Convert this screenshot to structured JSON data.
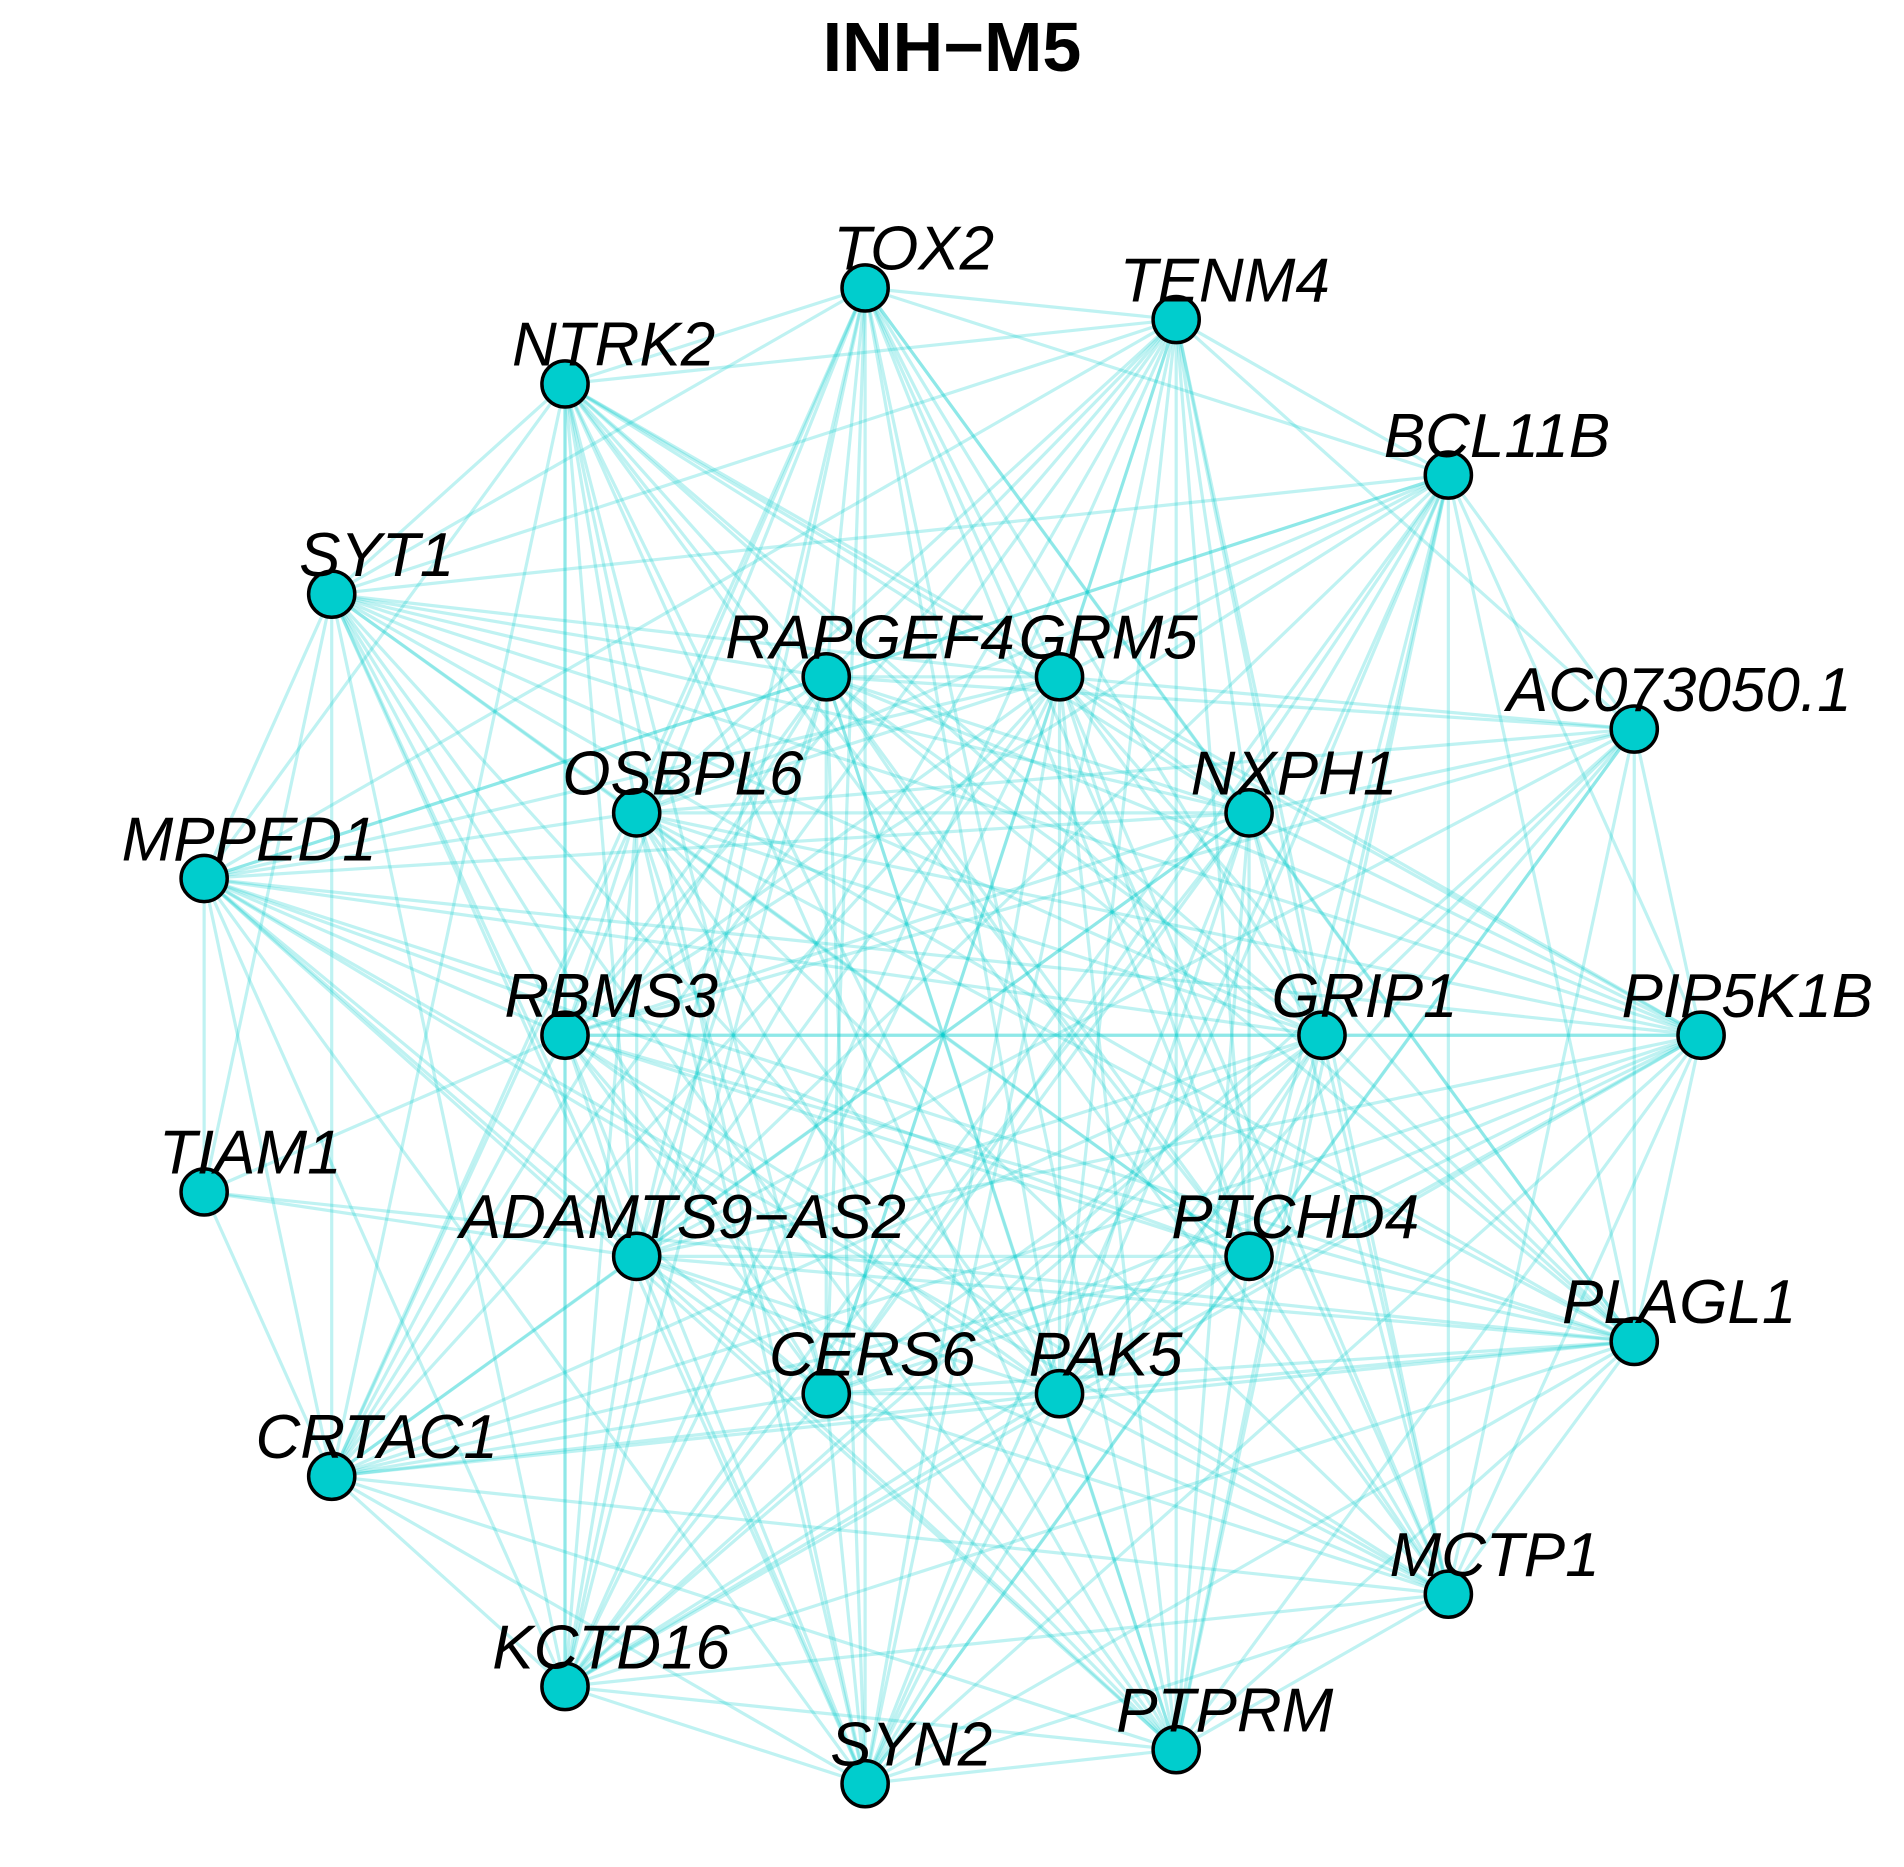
{
  "title": "INH−M5",
  "node_color": "#00cdcd",
  "edge_color": "#00cdcd",
  "nodes": [
    {
      "id": "TOX2",
      "label": "TOX2"
    },
    {
      "id": "TENM4",
      "label": "TENM4"
    },
    {
      "id": "NTRK2",
      "label": "NTRK2"
    },
    {
      "id": "BCL11B",
      "label": "BCL11B"
    },
    {
      "id": "SYT1",
      "label": "SYT1"
    },
    {
      "id": "RAPGEF4",
      "label": "RAPGEF4"
    },
    {
      "id": "GRM5",
      "label": "GRM5"
    },
    {
      "id": "AC073050.1",
      "label": "AC073050.1"
    },
    {
      "id": "OSBPL6",
      "label": "OSBPL6"
    },
    {
      "id": "NXPH1",
      "label": "NXPH1"
    },
    {
      "id": "MPPED1",
      "label": "MPPED1"
    },
    {
      "id": "RBMS3",
      "label": "RBMS3"
    },
    {
      "id": "GRIP1",
      "label": "GRIP1"
    },
    {
      "id": "PIP5K1B",
      "label": "PIP5K1B"
    },
    {
      "id": "TIAM1",
      "label": "TIAM1"
    },
    {
      "id": "ADAMTS9-AS2",
      "label": "ADAMTS9−AS2"
    },
    {
      "id": "PTCHD4",
      "label": "PTCHD4"
    },
    {
      "id": "PLAGL1",
      "label": "PLAGL1"
    },
    {
      "id": "CERS6",
      "label": "CERS6"
    },
    {
      "id": "PAK5",
      "label": "PAK5"
    },
    {
      "id": "CRTAC1",
      "label": "CRTAC1"
    },
    {
      "id": "MCTP1",
      "label": "MCTP1"
    },
    {
      "id": "KCTD16",
      "label": "KCTD16"
    },
    {
      "id": "PTPRM",
      "label": "PTPRM"
    },
    {
      "id": "SYN2",
      "label": "SYN2"
    }
  ],
  "edges": [
    [
      "TOX2",
      "TENM4"
    ],
    [
      "TOX2",
      "NTRK2"
    ],
    [
      "TOX2",
      "RAPGEF4"
    ],
    [
      "TOX2",
      "GRM5"
    ],
    [
      "TOX2",
      "OSBPL6"
    ],
    [
      "TOX2",
      "NXPH1"
    ],
    [
      "TOX2",
      "RBMS3"
    ],
    [
      "TOX2",
      "GRIP1"
    ],
    [
      "TOX2",
      "ADAMTS9-AS2"
    ],
    [
      "TOX2",
      "PTCHD4"
    ],
    [
      "TOX2",
      "PAK5"
    ],
    [
      "TOX2",
      "CERS6"
    ],
    [
      "TOX2",
      "PLAGL1"
    ],
    [
      "TOX2",
      "SYN2"
    ],
    [
      "TOX2",
      "PTPRM"
    ],
    [
      "TOX2",
      "KCTD16"
    ],
    [
      "TOX2",
      "CRTAC1"
    ],
    [
      "TOX2",
      "MCTP1"
    ],
    [
      "TOX2",
      "SYT1"
    ],
    [
      "TOX2",
      "BCL11B"
    ],
    [
      "TENM4",
      "NTRK2"
    ],
    [
      "TENM4",
      "BCL11B"
    ],
    [
      "TENM4",
      "RAPGEF4"
    ],
    [
      "TENM4",
      "GRM5"
    ],
    [
      "TENM4",
      "OSBPL6"
    ],
    [
      "TENM4",
      "NXPH1"
    ],
    [
      "TENM4",
      "RBMS3"
    ],
    [
      "TENM4",
      "GRIP1"
    ],
    [
      "TENM4",
      "ADAMTS9-AS2"
    ],
    [
      "TENM4",
      "PTCHD4"
    ],
    [
      "TENM4",
      "CERS6"
    ],
    [
      "TENM4",
      "PAK5"
    ],
    [
      "TENM4",
      "SYN2"
    ],
    [
      "TENM4",
      "KCTD16"
    ],
    [
      "TENM4",
      "CRTAC1"
    ],
    [
      "TENM4",
      "PTPRM"
    ],
    [
      "TENM4",
      "MCTP1"
    ],
    [
      "TENM4",
      "SYT1"
    ],
    [
      "TENM4",
      "MPPED1"
    ],
    [
      "TENM4",
      "AC073050.1"
    ],
    [
      "NTRK2",
      "SYT1"
    ],
    [
      "NTRK2",
      "RAPGEF4"
    ],
    [
      "NTRK2",
      "GRM5"
    ],
    [
      "NTRK2",
      "OSBPL6"
    ],
    [
      "NTRK2",
      "NXPH1"
    ],
    [
      "NTRK2",
      "RBMS3"
    ],
    [
      "NTRK2",
      "GRIP1"
    ],
    [
      "NTRK2",
      "ADAMTS9-AS2"
    ],
    [
      "NTRK2",
      "PTCHD4"
    ],
    [
      "NTRK2",
      "CERS6"
    ],
    [
      "NTRK2",
      "PAK5"
    ],
    [
      "NTRK2",
      "KCTD16"
    ],
    [
      "NTRK2",
      "SYN2"
    ],
    [
      "NTRK2",
      "PTPRM"
    ],
    [
      "NTRK2",
      "CRTAC1"
    ],
    [
      "NTRK2",
      "MCTP1"
    ],
    [
      "NTRK2",
      "PLAGL1"
    ],
    [
      "NTRK2",
      "MPPED1"
    ],
    [
      "NTRK2",
      "PIP5K1B"
    ],
    [
      "BCL11B",
      "RAPGEF4"
    ],
    [
      "BCL11B",
      "GRM5"
    ],
    [
      "BCL11B",
      "OSBPL6"
    ],
    [
      "BCL11B",
      "NXPH1"
    ],
    [
      "BCL11B",
      "AC073050.1"
    ],
    [
      "BCL11B",
      "GRIP1"
    ],
    [
      "BCL11B",
      "PIP5K1B"
    ],
    [
      "BCL11B",
      "RBMS3"
    ],
    [
      "BCL11B",
      "ADAMTS9-AS2"
    ],
    [
      "BCL11B",
      "PTCHD4"
    ],
    [
      "BCL11B",
      "PLAGL1"
    ],
    [
      "BCL11B",
      "CERS6"
    ],
    [
      "BCL11B",
      "PAK5"
    ],
    [
      "BCL11B",
      "MCTP1"
    ],
    [
      "BCL11B",
      "PTPRM"
    ],
    [
      "BCL11B",
      "SYN2"
    ],
    [
      "BCL11B",
      "KCTD16"
    ],
    [
      "BCL11B",
      "SYT1"
    ],
    [
      "BCL11B",
      "MPPED1"
    ],
    [
      "SYT1",
      "RAPGEF4"
    ],
    [
      "SYT1",
      "GRM5"
    ],
    [
      "SYT1",
      "OSBPL6"
    ],
    [
      "SYT1",
      "NXPH1"
    ],
    [
      "SYT1",
      "MPPED1"
    ],
    [
      "SYT1",
      "RBMS3"
    ],
    [
      "SYT1",
      "GRIP1"
    ],
    [
      "SYT1",
      "ADAMTS9-AS2"
    ],
    [
      "SYT1",
      "PTCHD4"
    ],
    [
      "SYT1",
      "CERS6"
    ],
    [
      "SYT1",
      "PAK5"
    ],
    [
      "SYT1",
      "CRTAC1"
    ],
    [
      "SYT1",
      "KCTD16"
    ],
    [
      "SYT1",
      "SYN2"
    ],
    [
      "SYT1",
      "PTPRM"
    ],
    [
      "SYT1",
      "TIAM1"
    ],
    [
      "SYT1",
      "PIP5K1B"
    ],
    [
      "SYT1",
      "PLAGL1"
    ],
    [
      "RAPGEF4",
      "GRM5"
    ],
    [
      "RAPGEF4",
      "OSBPL6"
    ],
    [
      "RAPGEF4",
      "NXPH1"
    ],
    [
      "RAPGEF4",
      "RBMS3"
    ],
    [
      "RAPGEF4",
      "GRIP1"
    ],
    [
      "RAPGEF4",
      "ADAMTS9-AS2"
    ],
    [
      "RAPGEF4",
      "PTCHD4"
    ],
    [
      "RAPGEF4",
      "CERS6"
    ],
    [
      "RAPGEF4",
      "PAK5"
    ],
    [
      "RAPGEF4",
      "PLAGL1"
    ],
    [
      "RAPGEF4",
      "SYN2"
    ],
    [
      "RAPGEF4",
      "PTPRM"
    ],
    [
      "RAPGEF4",
      "KCTD16"
    ],
    [
      "RAPGEF4",
      "CRTAC1"
    ],
    [
      "RAPGEF4",
      "MPPED1"
    ],
    [
      "RAPGEF4",
      "AC073050.1"
    ],
    [
      "RAPGEF4",
      "PIP5K1B"
    ],
    [
      "RAPGEF4",
      "MCTP1"
    ],
    [
      "GRM5",
      "OSBPL6"
    ],
    [
      "GRM5",
      "NXPH1"
    ],
    [
      "GRM5",
      "RBMS3"
    ],
    [
      "GRM5",
      "GRIP1"
    ],
    [
      "GRM5",
      "ADAMTS9-AS2"
    ],
    [
      "GRM5",
      "PTCHD4"
    ],
    [
      "GRM5",
      "CERS6"
    ],
    [
      "GRM5",
      "PAK5"
    ],
    [
      "GRM5",
      "PLAGL1"
    ],
    [
      "GRM5",
      "SYN2"
    ],
    [
      "GRM5",
      "PTPRM"
    ],
    [
      "GRM5",
      "KCTD16"
    ],
    [
      "GRM5",
      "CRTAC1"
    ],
    [
      "GRM5",
      "MPPED1"
    ],
    [
      "GRM5",
      "AC073050.1"
    ],
    [
      "GRM5",
      "PIP5K1B"
    ],
    [
      "GRM5",
      "MCTP1"
    ],
    [
      "AC073050.1",
      "OSBPL6"
    ],
    [
      "AC073050.1",
      "NXPH1"
    ],
    [
      "AC073050.1",
      "GRIP1"
    ],
    [
      "AC073050.1",
      "PIP5K1B"
    ],
    [
      "AC073050.1",
      "PTCHD4"
    ],
    [
      "AC073050.1",
      "PLAGL1"
    ],
    [
      "AC073050.1",
      "PAK5"
    ],
    [
      "AC073050.1",
      "ADAMTS9-AS2"
    ],
    [
      "AC073050.1",
      "RBMS3"
    ],
    [
      "AC073050.1",
      "MCTP1"
    ],
    [
      "AC073050.1",
      "SYN2"
    ],
    [
      "AC073050.1",
      "KCTD16"
    ],
    [
      "OSBPL6",
      "NXPH1"
    ],
    [
      "OSBPL6",
      "MPPED1"
    ],
    [
      "OSBPL6",
      "RBMS3"
    ],
    [
      "OSBPL6",
      "GRIP1"
    ],
    [
      "OSBPL6",
      "ADAMTS9-AS2"
    ],
    [
      "OSBPL6",
      "PTCHD4"
    ],
    [
      "OSBPL6",
      "CERS6"
    ],
    [
      "OSBPL6",
      "PAK5"
    ],
    [
      "OSBPL6",
      "PLAGL1"
    ],
    [
      "OSBPL6",
      "PIP5K1B"
    ],
    [
      "OSBPL6",
      "CRTAC1"
    ],
    [
      "OSBPL6",
      "KCTD16"
    ],
    [
      "OSBPL6",
      "SYN2"
    ],
    [
      "OSBPL6",
      "PTPRM"
    ],
    [
      "OSBPL6",
      "MCTP1"
    ],
    [
      "NXPH1",
      "RBMS3"
    ],
    [
      "NXPH1",
      "GRIP1"
    ],
    [
      "NXPH1",
      "PIP5K1B"
    ],
    [
      "NXPH1",
      "ADAMTS9-AS2"
    ],
    [
      "NXPH1",
      "PTCHD4"
    ],
    [
      "NXPH1",
      "PLAGL1"
    ],
    [
      "NXPH1",
      "CERS6"
    ],
    [
      "NXPH1",
      "PAK5"
    ],
    [
      "NXPH1",
      "MCTP1"
    ],
    [
      "NXPH1",
      "PTPRM"
    ],
    [
      "NXPH1",
      "SYN2"
    ],
    [
      "NXPH1",
      "KCTD16"
    ],
    [
      "NXPH1",
      "CRTAC1"
    ],
    [
      "NXPH1",
      "MPPED1"
    ],
    [
      "MPPED1",
      "RBMS3"
    ],
    [
      "MPPED1",
      "TIAM1"
    ],
    [
      "MPPED1",
      "ADAMTS9-AS2"
    ],
    [
      "MPPED1",
      "GRIP1"
    ],
    [
      "MPPED1",
      "PTCHD4"
    ],
    [
      "MPPED1",
      "CERS6"
    ],
    [
      "MPPED1",
      "PAK5"
    ],
    [
      "MPPED1",
      "PLAGL1"
    ],
    [
      "MPPED1",
      "PIP5K1B"
    ],
    [
      "MPPED1",
      "CRTAC1"
    ],
    [
      "MPPED1",
      "KCTD16"
    ],
    [
      "MPPED1",
      "SYN2"
    ],
    [
      "MPPED1",
      "PTPRM"
    ],
    [
      "MPPED1",
      "MCTP1"
    ],
    [
      "RBMS3",
      "GRIP1"
    ],
    [
      "RBMS3",
      "PIP5K1B"
    ],
    [
      "RBMS3",
      "ADAMTS9-AS2"
    ],
    [
      "RBMS3",
      "PTCHD4"
    ],
    [
      "RBMS3",
      "CERS6"
    ],
    [
      "RBMS3",
      "PAK5"
    ],
    [
      "RBMS3",
      "PLAGL1"
    ],
    [
      "RBMS3",
      "CRTAC1"
    ],
    [
      "RBMS3",
      "KCTD16"
    ],
    [
      "RBMS3",
      "SYN2"
    ],
    [
      "RBMS3",
      "PTPRM"
    ],
    [
      "RBMS3",
      "MCTP1"
    ],
    [
      "GRIP1",
      "PIP5K1B"
    ],
    [
      "GRIP1",
      "ADAMTS9-AS2"
    ],
    [
      "GRIP1",
      "PTCHD4"
    ],
    [
      "GRIP1",
      "PLAGL1"
    ],
    [
      "GRIP1",
      "CERS6"
    ],
    [
      "GRIP1",
      "PAK5"
    ],
    [
      "GRIP1",
      "MCTP1"
    ],
    [
      "GRIP1",
      "PTPRM"
    ],
    [
      "GRIP1",
      "SYN2"
    ],
    [
      "GRIP1",
      "KCTD16"
    ],
    [
      "GRIP1",
      "CRTAC1"
    ],
    [
      "PIP5K1B",
      "PTCHD4"
    ],
    [
      "PIP5K1B",
      "PLAGL1"
    ],
    [
      "PIP5K1B",
      "PAK5"
    ],
    [
      "PIP5K1B",
      "CERS6"
    ],
    [
      "PIP5K1B",
      "ADAMTS9-AS2"
    ],
    [
      "PIP5K1B",
      "MCTP1"
    ],
    [
      "PIP5K1B",
      "PTPRM"
    ],
    [
      "PIP5K1B",
      "SYN2"
    ],
    [
      "PIP5K1B",
      "KCTD16"
    ],
    [
      "PIP5K1B",
      "CRTAC1"
    ],
    [
      "TIAM1",
      "CRTAC1"
    ],
    [
      "TIAM1",
      "ADAMTS9-AS2"
    ],
    [
      "TIAM1",
      "PLAGL1"
    ],
    [
      "TIAM1",
      "RBMS3"
    ],
    [
      "ADAMTS9-AS2",
      "PTCHD4"
    ],
    [
      "ADAMTS9-AS2",
      "CERS6"
    ],
    [
      "ADAMTS9-AS2",
      "PAK5"
    ],
    [
      "ADAMTS9-AS2",
      "PLAGL1"
    ],
    [
      "ADAMTS9-AS2",
      "CRTAC1"
    ],
    [
      "ADAMTS9-AS2",
      "KCTD16"
    ],
    [
      "ADAMTS9-AS2",
      "SYN2"
    ],
    [
      "ADAMTS9-AS2",
      "PTPRM"
    ],
    [
      "ADAMTS9-AS2",
      "MCTP1"
    ],
    [
      "PTCHD4",
      "PLAGL1"
    ],
    [
      "PTCHD4",
      "CERS6"
    ],
    [
      "PTCHD4",
      "PAK5"
    ],
    [
      "PTCHD4",
      "MCTP1"
    ],
    [
      "PTCHD4",
      "PTPRM"
    ],
    [
      "PTCHD4",
      "SYN2"
    ],
    [
      "PTCHD4",
      "KCTD16"
    ],
    [
      "PTCHD4",
      "CRTAC1"
    ],
    [
      "PLAGL1",
      "CERS6"
    ],
    [
      "PLAGL1",
      "PAK5"
    ],
    [
      "PLAGL1",
      "MCTP1"
    ],
    [
      "PLAGL1",
      "PTPRM"
    ],
    [
      "PLAGL1",
      "SYN2"
    ],
    [
      "PLAGL1",
      "KCTD16"
    ],
    [
      "PLAGL1",
      "CRTAC1"
    ],
    [
      "CERS6",
      "PAK5"
    ],
    [
      "CERS6",
      "CRTAC1"
    ],
    [
      "CERS6",
      "KCTD16"
    ],
    [
      "CERS6",
      "SYN2"
    ],
    [
      "CERS6",
      "PTPRM"
    ],
    [
      "CERS6",
      "MCTP1"
    ],
    [
      "PAK5",
      "CRTAC1"
    ],
    [
      "PAK5",
      "KCTD16"
    ],
    [
      "PAK5",
      "SYN2"
    ],
    [
      "PAK5",
      "PTPRM"
    ],
    [
      "PAK5",
      "MCTP1"
    ],
    [
      "CRTAC1",
      "KCTD16"
    ],
    [
      "CRTAC1",
      "SYN2"
    ],
    [
      "CRTAC1",
      "PTPRM"
    ],
    [
      "CRTAC1",
      "MCTP1"
    ],
    [
      "MCTP1",
      "PTPRM"
    ],
    [
      "MCTP1",
      "SYN2"
    ],
    [
      "MCTP1",
      "KCTD16"
    ],
    [
      "KCTD16",
      "SYN2"
    ],
    [
      "KCTD16",
      "PTPRM"
    ],
    [
      "PTPRM",
      "SYN2"
    ]
  ]
}
